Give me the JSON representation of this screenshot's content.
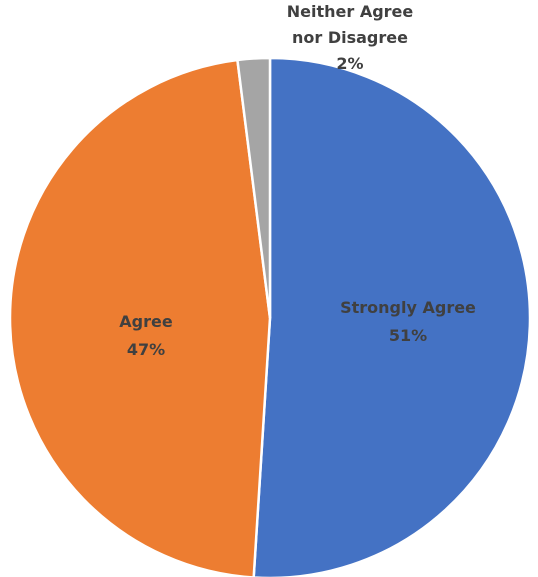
{
  "chart_data": {
    "type": "pie",
    "title": "",
    "slices": [
      {
        "label": "Strongly Agree",
        "label_lines": [
          "Strongly Agree"
        ],
        "percent_label": "51%",
        "value": 51,
        "color": "#4472C4",
        "label_color": "#404040"
      },
      {
        "label": "Agree",
        "label_lines": [
          "Agree"
        ],
        "percent_label": "47%",
        "value": 47,
        "color": "#ED7D31",
        "label_color": "#404040"
      },
      {
        "label": "Neither Agree nor Disagree",
        "label_lines": [
          "Neither Agree",
          "nor Disagree"
        ],
        "percent_label": "2%",
        "value": 2,
        "color": "#A5A5A5",
        "label_color": "#404040"
      }
    ],
    "start_angle": "12 o'clock",
    "direction": "clockwise",
    "legend": "none"
  }
}
